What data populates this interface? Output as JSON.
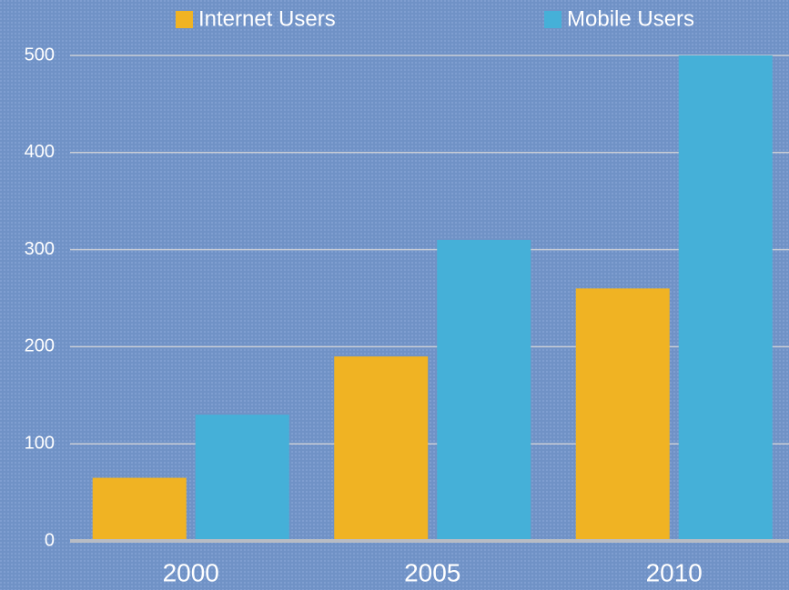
{
  "chart_data": {
    "type": "bar",
    "categories": [
      "2000",
      "2005",
      "2010"
    ],
    "series": [
      {
        "name": "Internet Users",
        "color": "#f0b323",
        "values": [
          65,
          190,
          260
        ]
      },
      {
        "name": "Mobile Users",
        "color": "#45b0d8",
        "values": [
          130,
          310,
          500
        ]
      }
    ],
    "ylim": [
      0,
      500
    ],
    "yticks": [
      0,
      100,
      200,
      300,
      400,
      500
    ],
    "grid": true,
    "legend": "top"
  }
}
